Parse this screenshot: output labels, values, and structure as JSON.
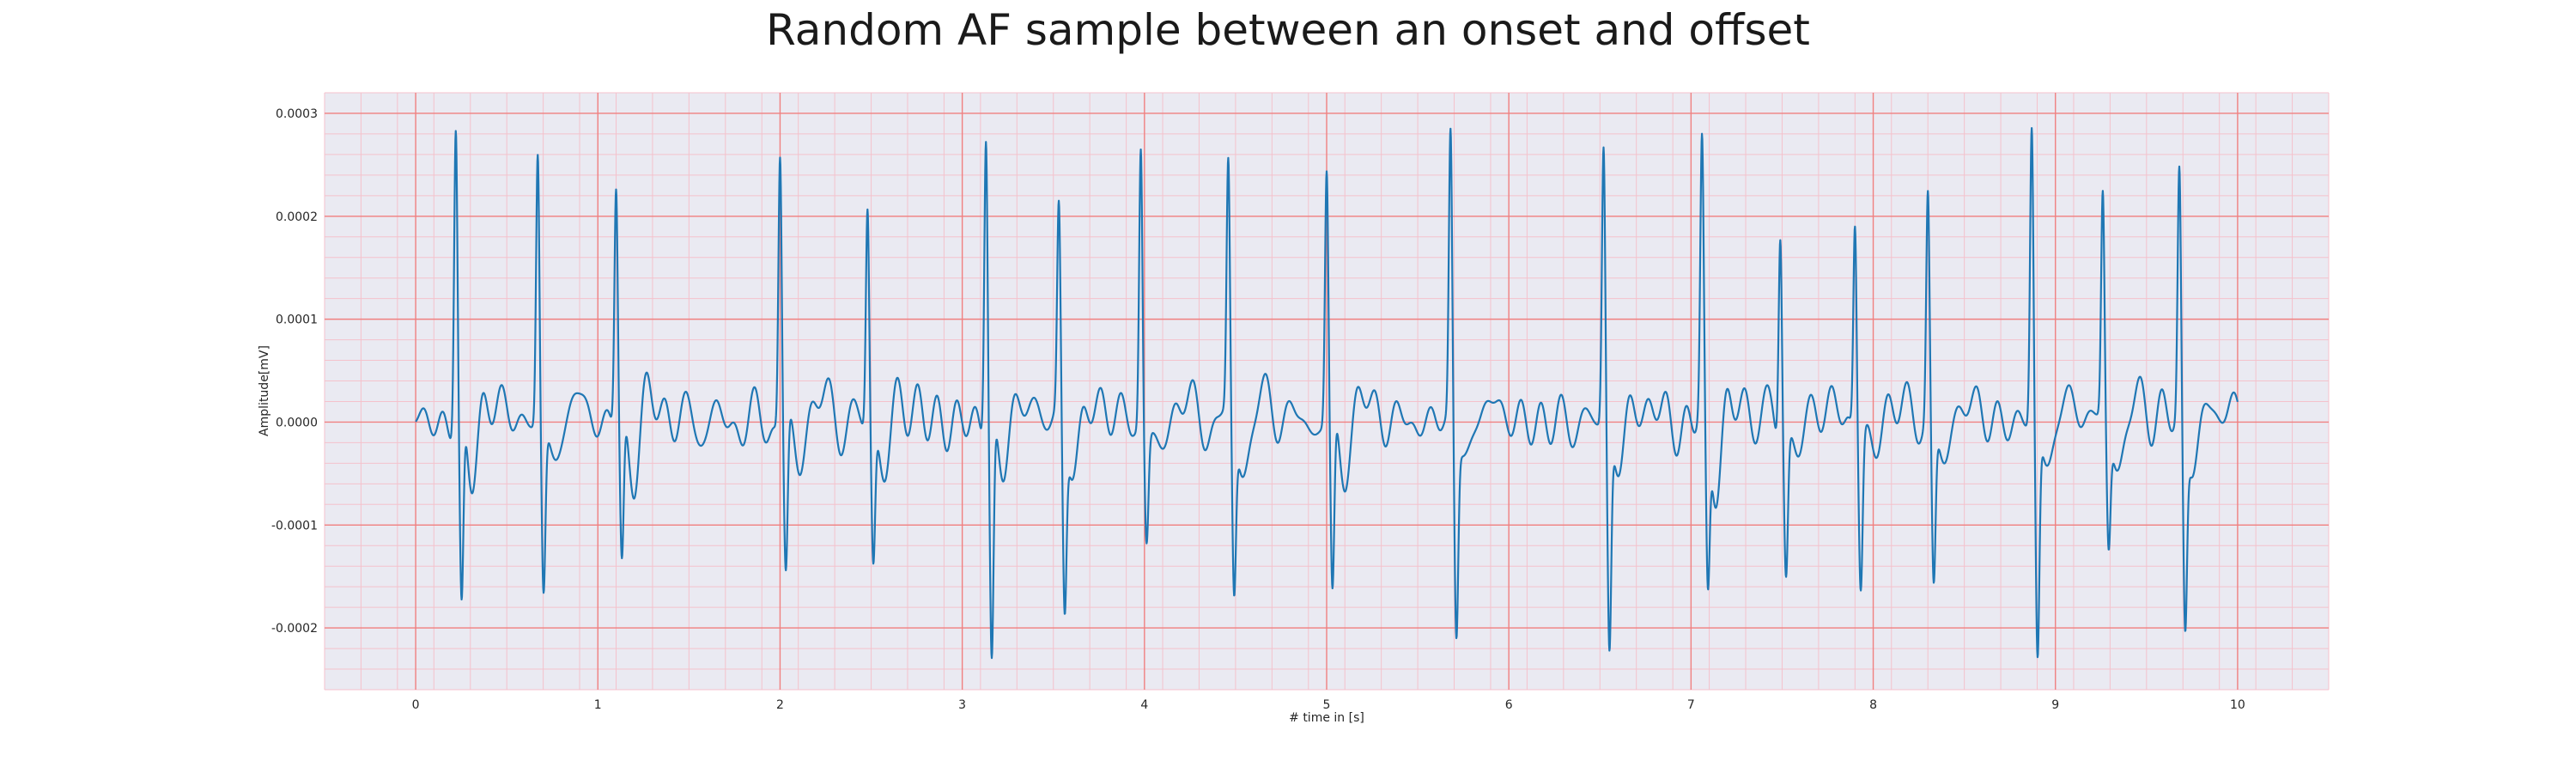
{
  "chart_data": {
    "type": "line",
    "title": "Random AF sample between an onset and offset",
    "xlabel": "# time in [s]",
    "ylabel": "Amplitude[mV]",
    "xlim": [
      -0.5,
      10.5
    ],
    "ylim": [
      -0.00026,
      0.00032
    ],
    "x_ticks": [
      0,
      1,
      2,
      3,
      4,
      5,
      6,
      7,
      8,
      9,
      10
    ],
    "x_tick_labels": [
      "0",
      "1",
      "2",
      "3",
      "4",
      "5",
      "6",
      "7",
      "8",
      "9",
      "10"
    ],
    "y_ticks": [
      -0.0002,
      -0.0001,
      0.0,
      0.0001,
      0.0002,
      0.0003
    ],
    "y_tick_labels": [
      "-0.0002",
      "-0.0001",
      "0.0000",
      "0.0001",
      "0.0002",
      "0.0003"
    ],
    "grid": "major and minor",
    "colors": {
      "line": "#1f77b4",
      "plot_background": "#eaeaf2",
      "major_grid": "#f08080",
      "minor_grid": "#f4c2cc"
    },
    "series": [
      {
        "beats": [
          {
            "t": 0.22,
            "peak": 0.000287,
            "trough": -0.000195
          },
          {
            "t": 0.67,
            "peak": 0.000262,
            "trough": -0.000163
          },
          {
            "t": 1.1,
            "peak": 0.000232,
            "trough": -0.000143
          },
          {
            "t": 2.0,
            "peak": 0.000268,
            "trough": -0.00015
          },
          {
            "t": 2.48,
            "peak": 0.000214,
            "trough": -0.000135
          },
          {
            "t": 3.13,
            "peak": 0.00029,
            "trough": -0.000238
          },
          {
            "t": 3.53,
            "peak": 0.0002,
            "trough": -0.000175
          },
          {
            "t": 3.98,
            "peak": 0.000275,
            "trough": -0.000105
          },
          {
            "t": 4.46,
            "peak": 0.00024,
            "trough": -0.000163
          },
          {
            "t": 5.0,
            "peak": 0.00024,
            "trough": -0.00018
          },
          {
            "t": 5.68,
            "peak": 0.00028,
            "trough": -0.000193
          },
          {
            "t": 6.52,
            "peak": 0.000268,
            "trough": -0.000215
          },
          {
            "t": 7.06,
            "peak": 0.000253,
            "trough": -0.000167
          },
          {
            "t": 7.49,
            "peak": 0.000207,
            "trough": -0.000133
          },
          {
            "t": 7.9,
            "peak": 0.00021,
            "trough": -0.000142
          },
          {
            "t": 8.3,
            "peak": 0.00022,
            "trough": -0.000155
          },
          {
            "t": 8.87,
            "peak": 0.000285,
            "trough": -0.000225
          },
          {
            "t": 9.26,
            "peak": 0.000218,
            "trough": -0.000115
          },
          {
            "t": 9.68,
            "peak": 0.00024,
            "trough": -0.000187
          }
        ],
        "x_start": 0.0,
        "x_end": 10.0
      }
    ]
  }
}
